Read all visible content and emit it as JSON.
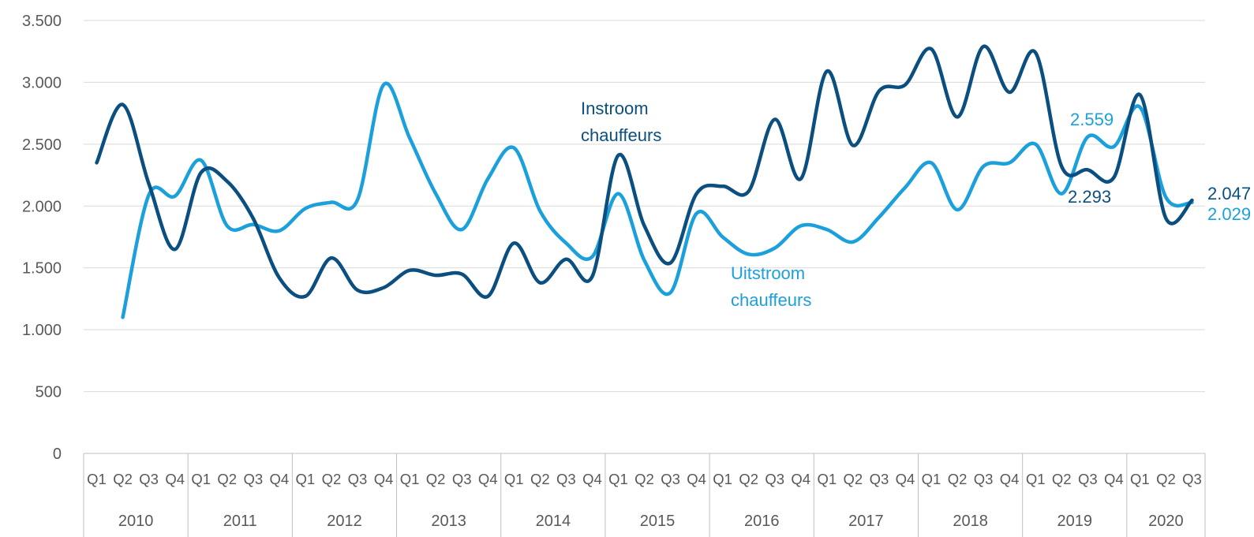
{
  "chart_data": {
    "type": "line",
    "title": "",
    "xlabel": "",
    "ylabel": "",
    "ylim": [
      0,
      3500
    ],
    "yticks": [
      0,
      500,
      1000,
      1500,
      2000,
      2500,
      3000,
      3500
    ],
    "ytick_labels": [
      "0",
      "500",
      "1.000",
      "1.500",
      "2.000",
      "2.500",
      "3.000",
      "3.500"
    ],
    "grid": true,
    "smooth": true,
    "years": [
      "2010",
      "2011",
      "2012",
      "2013",
      "2014",
      "2015",
      "2016",
      "2017",
      "2018",
      "2019",
      "2020"
    ],
    "quarters_per_year": [
      4,
      4,
      4,
      4,
      4,
      4,
      4,
      4,
      4,
      4,
      3
    ],
    "categories": [
      "Q1",
      "Q2",
      "Q3",
      "Q4",
      "Q1",
      "Q2",
      "Q3",
      "Q4",
      "Q1",
      "Q2",
      "Q3",
      "Q4",
      "Q1",
      "Q2",
      "Q3",
      "Q4",
      "Q1",
      "Q2",
      "Q3",
      "Q4",
      "Q1",
      "Q2",
      "Q3",
      "Q4",
      "Q1",
      "Q2",
      "Q3",
      "Q4",
      "Q1",
      "Q2",
      "Q3",
      "Q4",
      "Q1",
      "Q2",
      "Q3",
      "Q4",
      "Q1",
      "Q2",
      "Q3",
      "Q4",
      "Q1",
      "Q2",
      "Q3"
    ],
    "series": [
      {
        "name": "Instroom chauffeurs",
        "color": "#0b4f80",
        "values": [
          2350,
          2820,
          2180,
          1650,
          2270,
          2200,
          1900,
          1420,
          1270,
          1580,
          1320,
          1340,
          1480,
          1440,
          1450,
          1270,
          1700,
          1380,
          1570,
          1430,
          2410,
          1840,
          1540,
          2100,
          2160,
          2120,
          2700,
          2220,
          3090,
          2490,
          2930,
          2980,
          3270,
          2720,
          3290,
          2920,
          3240,
          2320,
          2293,
          2230,
          2900,
          1900,
          2047
        ]
      },
      {
        "name": "Uitstroom chauffeurs",
        "color": "#1ca0dc",
        "values": [
          null,
          1100,
          2090,
          2080,
          2370,
          1840,
          1850,
          1800,
          1980,
          2030,
          2050,
          2980,
          2550,
          2100,
          1810,
          2220,
          2470,
          1960,
          1700,
          1590,
          2100,
          1560,
          1300,
          1940,
          1750,
          1610,
          1660,
          1840,
          1810,
          1710,
          1910,
          2150,
          2350,
          1970,
          2320,
          2350,
          2500,
          2100,
          2559,
          2480,
          2800,
          2070,
          2029
        ]
      }
    ],
    "annotations": {
      "instroom_label_line1": "Instroom",
      "instroom_label_line2": "chauffeurs",
      "uitstroom_label_line1": "Uitstroom",
      "uitstroom_label_line2": "chauffeurs",
      "instroom_2019q3": "2.293",
      "uitstroom_2019q3": "2.559",
      "instroom_last": "2.047",
      "uitstroom_last": "2.029"
    }
  }
}
